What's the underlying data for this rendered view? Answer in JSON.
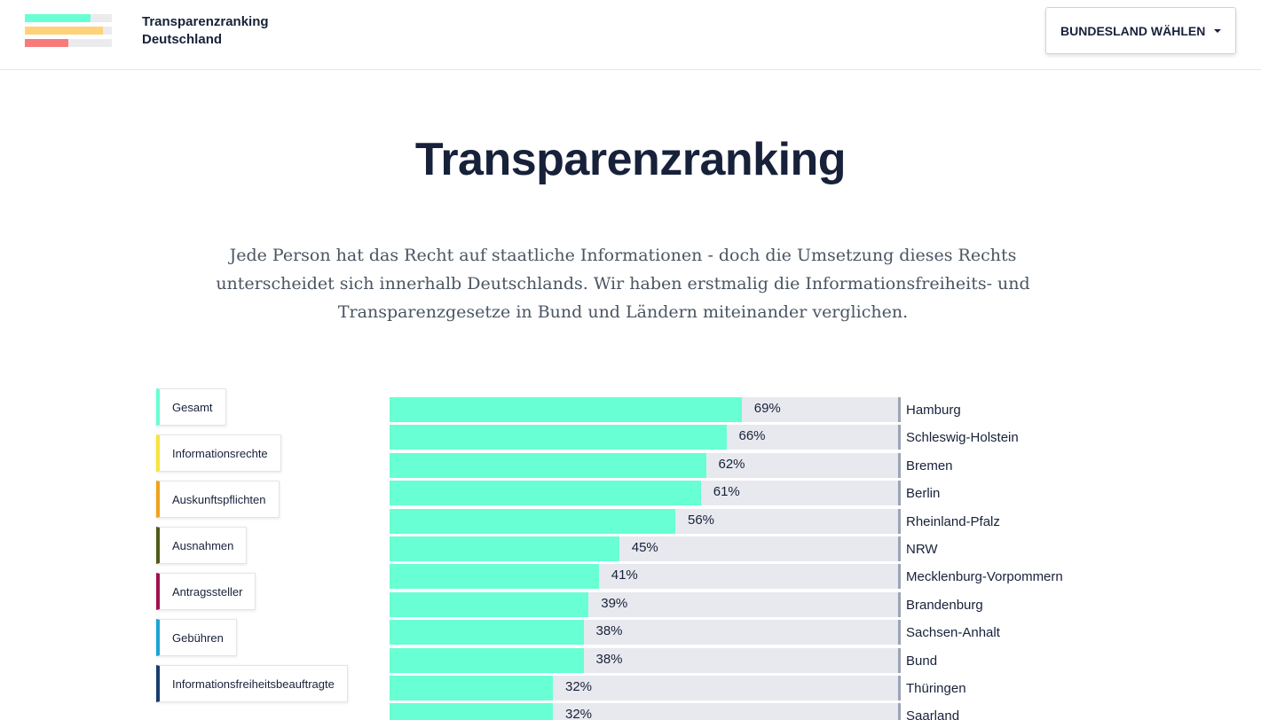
{
  "header": {
    "brand_line1": "Transparenzranking",
    "brand_line2": "Deutschland",
    "logo_bars": [
      {
        "color": "#67ffd3",
        "fraction": 0.76
      },
      {
        "color": "#ffd178",
        "fraction": 0.9
      },
      {
        "color": "#f77b7b",
        "fraction": 0.5
      }
    ],
    "select_button_label": "BUNDESLAND WÄHLEN"
  },
  "hero": {
    "title": "Transparenzranking",
    "intro": "Jede Person hat das Recht auf staatliche Informationen - doch die Umsetzung dieses Rechts unterscheidet sich innerhalb Deutschlands. Wir haben erstmalig die Informationsfreiheits- und Transparenzgesetze in Bund und Ländern miteinander verglichen."
  },
  "categories": [
    {
      "label": "Gesamt",
      "color": "#67ffd3"
    },
    {
      "label": "Informationsrechte",
      "color": "#f7e43a"
    },
    {
      "label": "Auskunftspflichten",
      "color": "#f0a21c"
    },
    {
      "label": "Ausnahmen",
      "color": "#4f5a17"
    },
    {
      "label": "Antragssteller",
      "color": "#a1114f"
    },
    {
      "label": "Gebühren",
      "color": "#1ca4d4"
    },
    {
      "label": "Informationsfreiheitsbeauftragte",
      "color": "#183c6e"
    }
  ],
  "chart_data": {
    "type": "bar",
    "orientation": "horizontal",
    "bar_color": "#67ffd3",
    "track_color": "#e8e9ee",
    "ylim": [
      0,
      100
    ],
    "categories": [
      "Hamburg",
      "Schleswig-Holstein",
      "Bremen",
      "Berlin",
      "Rheinland-Pfalz",
      "NRW",
      "Mecklenburg-Vorpommern",
      "Brandenburg",
      "Sachsen-Anhalt",
      "Bund",
      "Thüringen",
      "Saarland"
    ],
    "values": [
      69,
      66,
      62,
      61,
      56,
      45,
      41,
      39,
      38,
      38,
      32,
      32
    ],
    "labels": [
      "69%",
      "66%",
      "62%",
      "61%",
      "56%",
      "45%",
      "41%",
      "39%",
      "38%",
      "38%",
      "32%",
      "32%"
    ]
  }
}
